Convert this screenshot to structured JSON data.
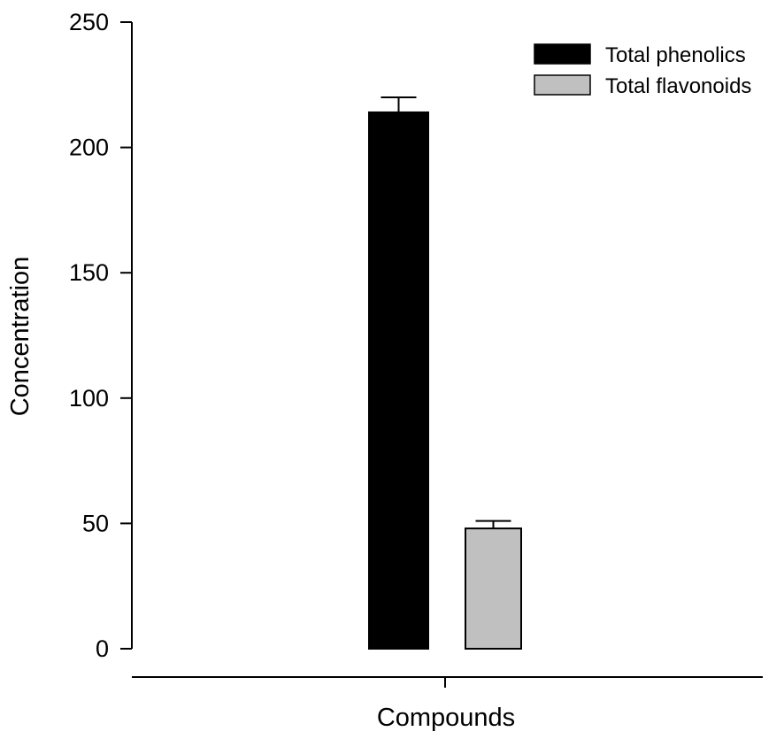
{
  "chart_data": {
    "type": "bar",
    "title": "",
    "xlabel": "Compounds",
    "ylabel": "Concentration",
    "ylim": [
      0,
      250
    ],
    "yticks": [
      0,
      50,
      100,
      150,
      200,
      250
    ],
    "grid": false,
    "legend_position": "top-right",
    "series": [
      {
        "name": "Total phenolics",
        "value": 214,
        "error": 6,
        "color": "#000000"
      },
      {
        "name": "Total flavonoids",
        "value": 48,
        "error": 3,
        "color": "#c0c0c0"
      }
    ]
  }
}
